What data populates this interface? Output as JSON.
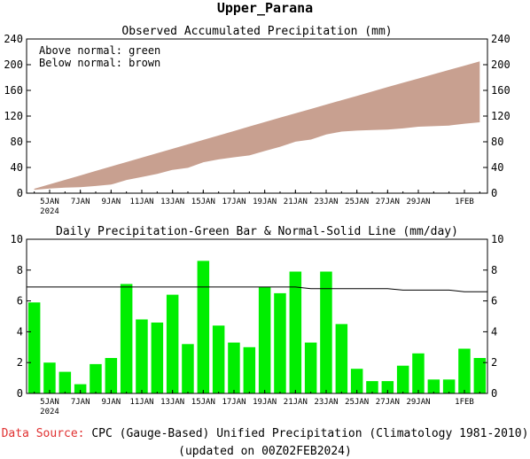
{
  "title": "Upper_Parana",
  "chart_data": [
    {
      "type": "area",
      "title": "Observed Accumulated Precipitation (mm)",
      "legend": {
        "above": "Above normal: green",
        "below": "Below normal: brown"
      },
      "ylim": [
        0,
        240
      ],
      "yticks": [
        0,
        40,
        80,
        120,
        160,
        200,
        240
      ],
      "xtick_labels": [
        "5JAN",
        "7JAN",
        "9JAN",
        "11JAN",
        "13JAN",
        "15JAN",
        "17JAN",
        "19JAN",
        "21JAN",
        "23JAN",
        "25JAN",
        "27JAN",
        "29JAN",
        "1FEB"
      ],
      "xtick_day": [
        5,
        7,
        9,
        11,
        13,
        15,
        17,
        19,
        21,
        23,
        25,
        27,
        29,
        32
      ],
      "year_label": "2024",
      "days": [
        4,
        5,
        6,
        7,
        8,
        9,
        10,
        11,
        12,
        13,
        14,
        15,
        16,
        17,
        18,
        19,
        20,
        21,
        22,
        23,
        24,
        25,
        26,
        27,
        28,
        29,
        30,
        31,
        32,
        33
      ],
      "series": [
        {
          "values": [
            5.9,
            7.9,
            9.3,
            9.9,
            11.8,
            14.1,
            21.2,
            26,
            30.6,
            37,
            40.2,
            48.8,
            53.2,
            56.5,
            59.5,
            66.4,
            72.9,
            80.8,
            84.1,
            92,
            96.5,
            98.1,
            98.9,
            99.7,
            101.5,
            104.1,
            105,
            105.9,
            108.8,
            111.1
          ],
          "color": "#00cc00"
        },
        {
          "values": [
            6.9,
            13.8,
            20.7,
            27.6,
            34.6,
            41.5,
            48.4,
            55.3,
            62.2,
            69.1,
            76,
            82.9,
            89.8,
            96.7,
            103.7,
            110.6,
            117.5,
            124.3,
            131.1,
            137.9,
            144.7,
            151.5,
            158.3,
            165.1,
            171.8,
            178.5,
            185.2,
            191.9,
            198.5,
            205.1
          ],
          "color": "#c8a090"
        }
      ]
    },
    {
      "type": "bar",
      "title": "Daily Precipitation-Green Bar & Normal-Solid Line (mm/day)",
      "ylim": [
        0,
        10
      ],
      "yticks": [
        0,
        2,
        4,
        6,
        8,
        10
      ],
      "days": [
        4,
        5,
        6,
        7,
        8,
        9,
        10,
        11,
        12,
        13,
        14,
        15,
        16,
        17,
        18,
        19,
        20,
        21,
        22,
        23,
        24,
        25,
        26,
        27,
        28,
        29,
        30,
        31,
        32,
        33
      ],
      "series": [
        {
          "values": [
            5.9,
            2.0,
            1.4,
            0.6,
            1.9,
            2.3,
            7.1,
            4.8,
            4.6,
            6.4,
            3.2,
            8.6,
            4.4,
            3.3,
            3.0,
            6.9,
            6.5,
            7.9,
            3.3,
            7.9,
            4.5,
            1.6,
            0.8,
            0.8,
            1.8,
            2.6,
            0.9,
            0.9,
            2.9,
            2.3
          ],
          "color": "#00ee00"
        },
        {
          "values": [
            6.9,
            6.9,
            6.9,
            6.9,
            6.9,
            6.9,
            6.9,
            6.9,
            6.9,
            6.9,
            6.9,
            6.9,
            6.9,
            6.9,
            6.9,
            6.9,
            6.9,
            6.9,
            6.8,
            6.8,
            6.8,
            6.8,
            6.8,
            6.8,
            6.7,
            6.7,
            6.7,
            6.7,
            6.6,
            6.6
          ],
          "color": "#000000"
        }
      ]
    }
  ],
  "footer": {
    "source_label": "Data Source:",
    "source_text": " CPC (Gauge-Based) Unified Precipitation (Climatology 1981-2010)",
    "updated": "(updated on 00Z02FEB2024)"
  }
}
